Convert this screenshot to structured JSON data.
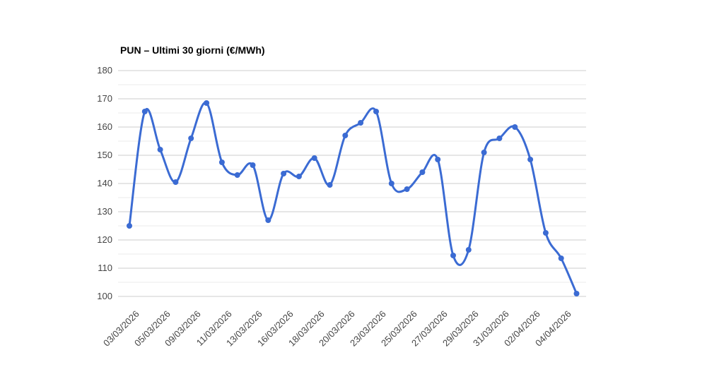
{
  "chart_data": {
    "type": "line",
    "title": "PUN – Ultimi 30 giorni (€/MWh)",
    "unit": "€/MWh",
    "curve": "smooth",
    "legend": "none",
    "grid": "horizontal, major every 10 with minor every 5",
    "ylim": [
      100,
      180
    ],
    "y_ticks": [
      100,
      110,
      120,
      130,
      140,
      150,
      160,
      170,
      180
    ],
    "x_tick_labels": [
      "03/03/2026",
      "05/03/2026",
      "09/03/2026",
      "11/03/2026",
      "13/03/2026",
      "16/03/2026",
      "18/03/2026",
      "20/03/2026",
      "23/03/2026",
      "25/03/2026",
      "27/03/2026",
      "29/03/2026",
      "31/03/2026",
      "02/04/2026",
      "04/04/2026"
    ],
    "x_tick_every": 2,
    "values": [
      125,
      165.5,
      152,
      140.5,
      156,
      168.5,
      147.5,
      143,
      146.5,
      127,
      143.5,
      142.5,
      149,
      139.5,
      157,
      161.5,
      165.5,
      140,
      138,
      144,
      148.5,
      114.5,
      116.5,
      151,
      156,
      160,
      148.5,
      122.5,
      113.5,
      101
    ]
  },
  "style": {
    "series_color": "#3b6bd3",
    "major_grid_color": "#cccccc",
    "minor_grid_color": "#ebebeb",
    "axis_text_color": "#444444",
    "title_color": "#000000",
    "background_color": "#ffffff"
  }
}
